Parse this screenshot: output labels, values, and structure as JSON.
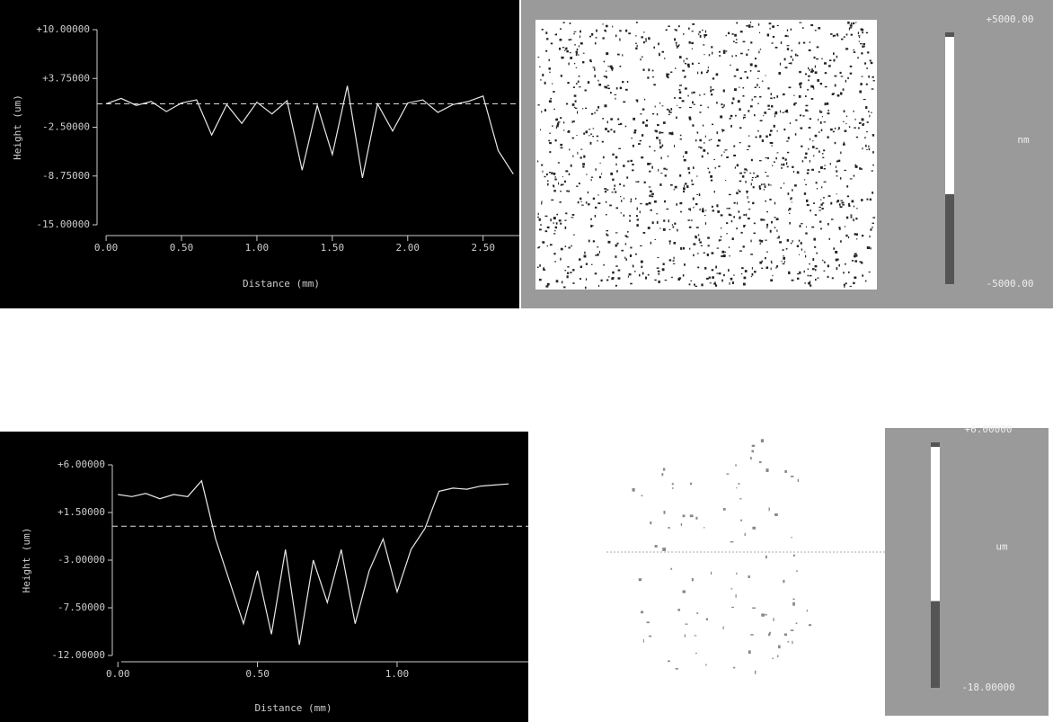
{
  "chart_data": [
    {
      "type": "line",
      "x_label": "Distance (mm)",
      "y_label": "Height (um)",
      "color": "#e8e8e8",
      "x": [
        0,
        0.1,
        0.2,
        0.3,
        0.4,
        0.5,
        0.6,
        0.7,
        0.8,
        0.9,
        1.0,
        1.1,
        1.2,
        1.3,
        1.4,
        1.5,
        1.6,
        1.7,
        1.8,
        1.9,
        2.0,
        2.1,
        2.2,
        2.3,
        2.4,
        2.5,
        2.6,
        2.7
      ],
      "values": [
        0.5,
        1.2,
        0.3,
        0.8,
        -0.5,
        0.6,
        1.0,
        -3.5,
        0.4,
        -2.0,
        0.7,
        -0.8,
        0.9,
        -8.0,
        0.3,
        -6.0,
        2.8,
        -9.0,
        0.5,
        -3.0,
        0.6,
        1.0,
        -0.6,
        0.4,
        0.8,
        1.5,
        -5.5,
        -8.5
      ],
      "reference": 0.5,
      "xlim": [
        -0.06,
        2.74
      ],
      "ylim": [
        -15,
        10
      ],
      "xticks": [
        {
          "value": 0,
          "label": "0.00"
        },
        {
          "value": 0.5,
          "label": "0.50"
        },
        {
          "value": 1,
          "label": "1.00"
        },
        {
          "value": 1.5,
          "label": "1.50"
        },
        {
          "value": 2,
          "label": "2.00"
        },
        {
          "value": 2.5,
          "label": "2.50"
        }
      ],
      "yticks": [
        {
          "value": 10,
          "label": "+10.00000"
        },
        {
          "value": 3.75,
          "label": "+3.75000"
        },
        {
          "value": -2.5,
          "label": "-2.50000"
        },
        {
          "value": -8.75,
          "label": "-8.75000"
        },
        {
          "value": -15,
          "label": "-15.00000"
        }
      ],
      "image": {
        "colorbar_max": "+5000.00",
        "colorbar_unit": "nm",
        "colorbar_min": "-5000.00"
      }
    },
    {
      "type": "line",
      "x_label": "Distance (mm)",
      "y_label": "Height (um)",
      "color": "#e8e8e8",
      "x": [
        0,
        0.05,
        0.1,
        0.15,
        0.2,
        0.25,
        0.3,
        0.35,
        0.4,
        0.45,
        0.5,
        0.55,
        0.6,
        0.65,
        0.7,
        0.75,
        0.8,
        0.85,
        0.9,
        0.95,
        1.0,
        1.05,
        1.1,
        1.15,
        1.2,
        1.25,
        1.3,
        1.35,
        1.4
      ],
      "values": [
        3.2,
        3.0,
        3.3,
        2.8,
        3.2,
        3.0,
        4.5,
        -1,
        -5,
        -9,
        -4,
        -10,
        -2,
        -11,
        -3,
        -7,
        -2,
        -9,
        -4,
        -1,
        -6,
        -2,
        0,
        3.5,
        3.8,
        3.7,
        4.0,
        4.1,
        4.2
      ],
      "reference": 0.2,
      "xlim": [
        -0.02,
        1.47
      ],
      "ylim": [
        -12,
        6
      ],
      "xticks": [
        {
          "value": 0,
          "label": "0.00"
        },
        {
          "value": 0.5,
          "label": "0.50"
        },
        {
          "value": 1,
          "label": "1.00"
        }
      ],
      "yticks": [
        {
          "value": 6,
          "label": "+6.00000"
        },
        {
          "value": 1.5,
          "label": "+1.50000"
        },
        {
          "value": -3,
          "label": "-3.00000"
        },
        {
          "value": -7.5,
          "label": "-7.50000"
        },
        {
          "value": -12,
          "label": "-12.00000"
        }
      ],
      "image": {
        "colorbar_max": "+6.00000",
        "colorbar_unit": "um",
        "colorbar_min": "-18.00000"
      }
    }
  ]
}
